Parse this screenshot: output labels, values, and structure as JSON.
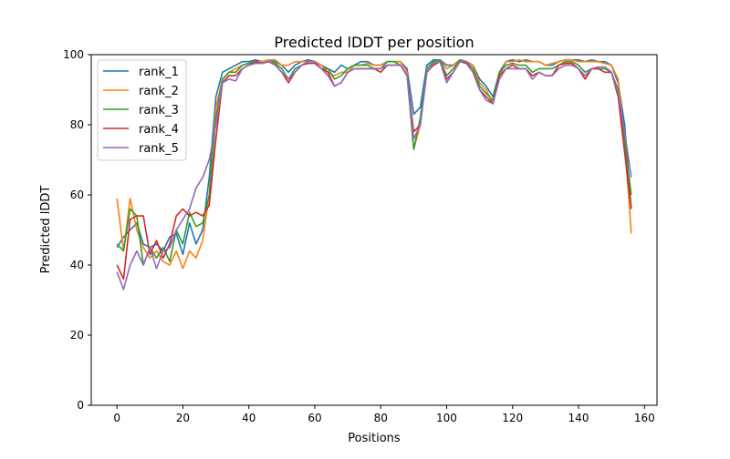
{
  "chart_data": {
    "type": "line",
    "title": "Predicted lDDT per position",
    "xlabel": "Positions",
    "ylabel": "Predicted lDDT",
    "xlim": [
      -7.8,
      163.8
    ],
    "ylim": [
      0,
      100
    ],
    "xticks": [
      0,
      20,
      40,
      60,
      80,
      100,
      120,
      140,
      160
    ],
    "yticks": [
      0,
      20,
      40,
      60,
      80,
      100
    ],
    "grid": false,
    "legend_position": "top-left",
    "x": [
      0,
      2,
      4,
      6,
      8,
      10,
      12,
      14,
      16,
      18,
      20,
      22,
      24,
      26,
      28,
      30,
      32,
      34,
      36,
      38,
      40,
      42,
      44,
      46,
      48,
      50,
      52,
      54,
      56,
      58,
      60,
      62,
      64,
      66,
      68,
      70,
      72,
      74,
      76,
      78,
      80,
      82,
      84,
      86,
      88,
      90,
      92,
      94,
      96,
      98,
      100,
      102,
      104,
      106,
      108,
      110,
      112,
      114,
      116,
      118,
      120,
      122,
      124,
      126,
      128,
      130,
      132,
      134,
      136,
      138,
      140,
      142,
      144,
      146,
      148,
      150,
      152,
      154,
      156
    ],
    "series": [
      {
        "name": "rank_1",
        "color": "#1f77b4",
        "values": [
          45,
          48,
          50,
          52,
          46,
          45,
          46,
          44,
          48,
          49,
          43,
          52,
          46,
          50,
          65,
          88,
          95,
          96,
          97,
          98,
          98,
          98.5,
          98,
          98.5,
          98,
          97,
          95,
          97,
          98,
          98.5,
          98,
          97,
          96,
          95,
          97,
          96,
          97,
          98,
          98,
          97,
          97,
          98,
          98,
          98,
          96,
          83,
          85,
          97,
          98.5,
          98.5,
          97,
          97,
          98.5,
          98,
          97,
          93,
          91,
          88,
          95,
          98,
          98.5,
          98,
          98.5,
          98,
          98,
          97,
          97,
          98,
          98.5,
          98.5,
          98.5,
          98,
          98.5,
          98,
          98,
          97,
          92,
          80,
          56
        ]
      },
      {
        "name": "rank_2",
        "color": "#ff7f0e",
        "values": [
          59,
          44,
          59,
          50,
          45,
          42,
          44,
          41,
          40,
          44,
          39,
          44,
          42,
          47,
          60,
          85,
          93,
          95,
          96,
          97,
          97.5,
          98,
          98,
          98.5,
          98.5,
          97,
          97,
          98,
          98,
          98,
          98,
          97,
          95,
          94,
          95,
          95,
          97,
          97,
          97.5,
          97,
          97,
          98,
          98,
          98,
          95,
          73,
          80,
          96,
          98,
          98.5,
          96,
          97,
          98.5,
          98,
          97,
          92,
          90,
          86,
          94,
          98,
          98,
          98.5,
          98,
          98,
          98,
          97,
          97.5,
          98,
          98.5,
          98.5,
          98,
          98,
          98,
          98,
          97.5,
          97,
          93,
          75,
          49
        ]
      },
      {
        "name": "rank_3",
        "color": "#2ca02c",
        "values": [
          46,
          44,
          56,
          54,
          40,
          45,
          42,
          45,
          41,
          50,
          46,
          55,
          51,
          52,
          60,
          82,
          93,
          95,
          95,
          97,
          97.5,
          98,
          97.5,
          98,
          97.5,
          96,
          93,
          96,
          97,
          98,
          98,
          96,
          96,
          93,
          94,
          96,
          97,
          97,
          97,
          96,
          96,
          98,
          98,
          97,
          94,
          73,
          82,
          96,
          98,
          98.5,
          94,
          96,
          98.5,
          98,
          96,
          91,
          89,
          87,
          95,
          97,
          97.5,
          97,
          97,
          95,
          96,
          96,
          96,
          97,
          98,
          98,
          97,
          95,
          96,
          96,
          96,
          95,
          90,
          75,
          60
        ]
      },
      {
        "name": "rank_4",
        "color": "#d62728",
        "values": [
          40,
          36,
          53,
          54,
          54,
          43,
          47,
          42,
          46,
          54,
          56,
          54,
          55,
          54,
          57,
          76,
          92,
          94,
          94,
          96,
          97,
          98,
          97.5,
          98,
          97,
          95,
          92,
          95,
          97,
          97.5,
          97.5,
          96,
          95,
          91,
          92,
          95,
          96,
          96,
          96,
          96,
          95,
          97,
          97,
          97,
          94,
          78,
          80,
          95,
          97,
          98,
          93,
          95,
          98,
          97.5,
          95,
          90,
          88,
          86,
          94,
          96,
          97,
          96,
          96,
          94,
          95,
          94,
          94,
          97,
          97.5,
          97.5,
          96,
          93,
          96,
          96,
          95,
          95,
          88,
          72,
          56
        ]
      },
      {
        "name": "rank_5",
        "color": "#9467bd",
        "values": [
          38,
          33,
          40,
          44,
          40,
          45,
          39,
          44,
          45,
          50,
          53,
          56,
          62,
          65,
          70,
          80,
          92,
          93,
          92.5,
          96,
          97,
          97.5,
          97.5,
          98,
          97,
          95,
          93,
          95,
          97,
          98,
          98,
          96,
          94,
          91,
          92,
          95,
          96,
          96,
          96,
          96,
          96,
          97,
          97,
          97,
          94,
          76,
          80,
          95,
          97.5,
          98,
          92,
          95,
          98,
          98,
          95,
          90,
          87,
          86,
          93,
          96,
          96,
          96,
          96,
          93,
          95,
          94,
          94,
          96,
          97,
          97,
          96,
          94,
          96,
          96.5,
          96.5,
          95,
          89,
          78,
          65
        ]
      }
    ]
  }
}
